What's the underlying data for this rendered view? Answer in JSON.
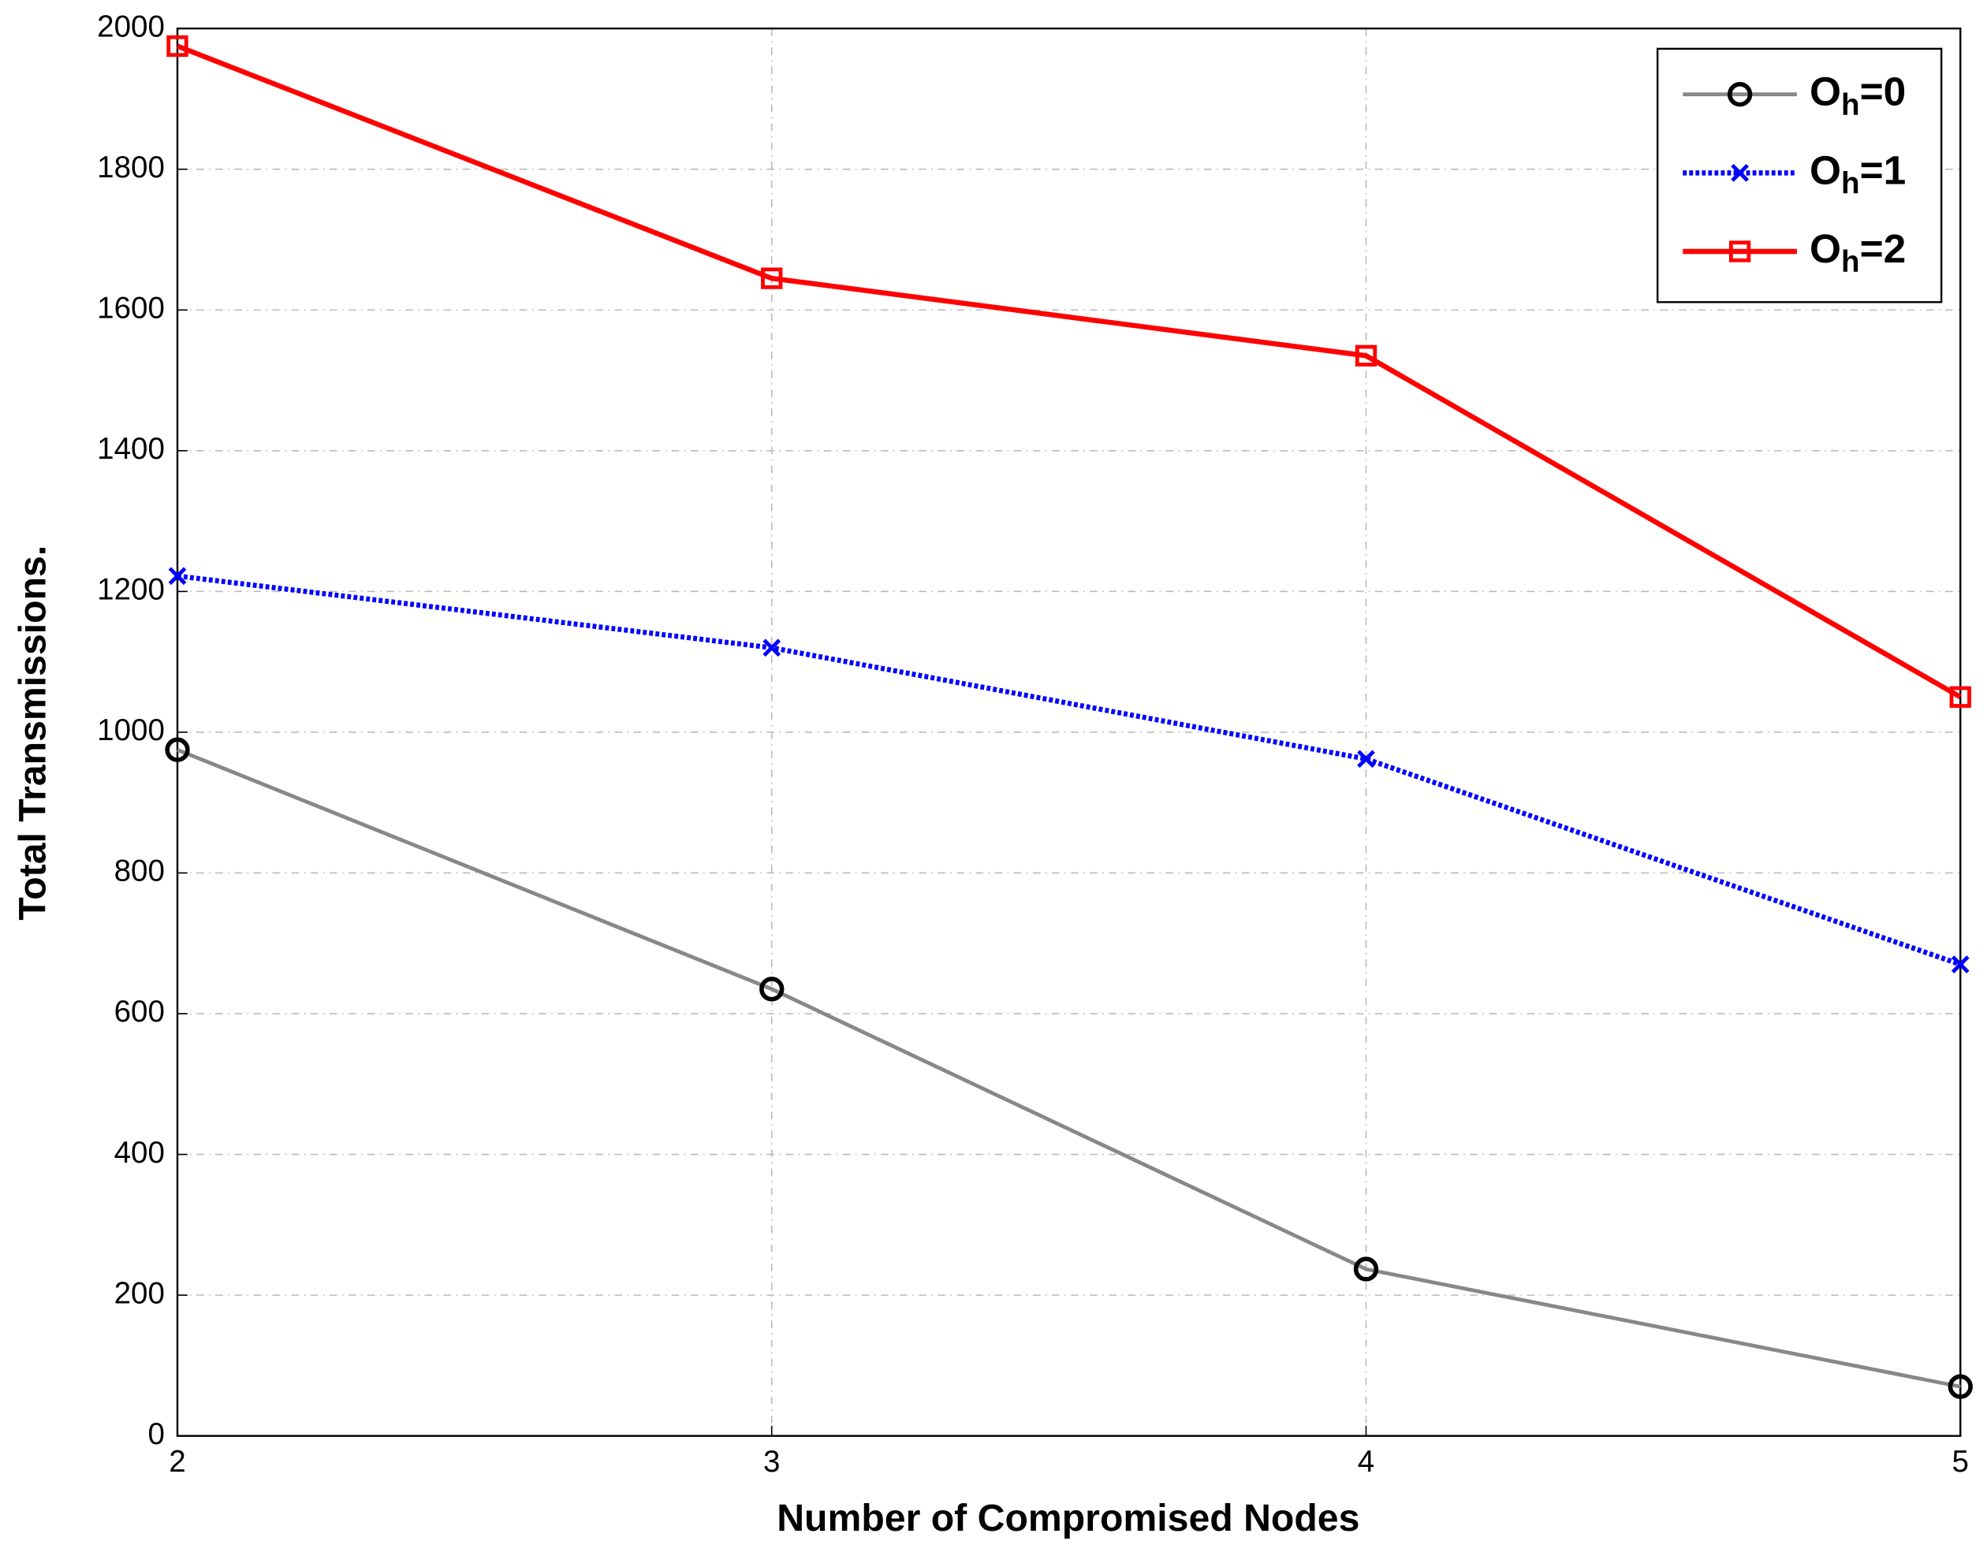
{
  "chart_data": {
    "type": "line",
    "xlabel": "Number of Compromised Nodes",
    "ylabel": "Total Transmissions.",
    "x": [
      2,
      3,
      4,
      5
    ],
    "series": [
      {
        "name": "Oh=0",
        "color": "#000000",
        "marker": "circle",
        "values": [
          975,
          635,
          237,
          70
        ]
      },
      {
        "name": "Oh=1",
        "color": "#0000ff",
        "marker": "x",
        "values": [
          1222,
          1120,
          962,
          670
        ]
      },
      {
        "name": "Oh=2",
        "color": "#ff0000",
        "marker": "square",
        "values": [
          1975,
          1645,
          1535,
          1050
        ]
      }
    ],
    "xlim": [
      2,
      5
    ],
    "xticks": [
      2,
      3,
      4,
      5
    ],
    "ylim": [
      0,
      2000
    ],
    "yticks": [
      0,
      200,
      400,
      600,
      800,
      1000,
      1200,
      1400,
      1600,
      1800,
      2000
    ],
    "grid": true,
    "legend": "upper right"
  }
}
